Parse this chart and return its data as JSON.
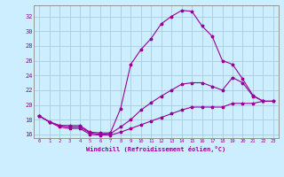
{
  "xlabel": "Windchill (Refroidissement éolien,°C)",
  "ylabel": "",
  "bg_color": "#cceeff",
  "grid_color": "#aaccdd",
  "line_color": "#990099",
  "xlim": [
    -0.5,
    23.5
  ],
  "ylim": [
    15.5,
    33.5
  ],
  "yticks": [
    16,
    18,
    20,
    22,
    24,
    26,
    28,
    30,
    32
  ],
  "xticks": [
    0,
    1,
    2,
    3,
    4,
    5,
    6,
    7,
    8,
    9,
    10,
    11,
    12,
    13,
    14,
    15,
    16,
    17,
    18,
    19,
    20,
    21,
    22,
    23
  ],
  "line1_x": [
    0,
    1,
    2,
    3,
    4,
    5,
    6,
    7,
    8,
    9,
    10,
    11,
    12,
    13,
    14,
    15,
    16,
    17,
    18,
    19,
    20,
    21,
    22
  ],
  "line1_y": [
    18.5,
    17.7,
    17.2,
    17.2,
    17.2,
    16.3,
    16.2,
    16.2,
    19.5,
    25.5,
    27.5,
    29.0,
    31.0,
    32.0,
    32.8,
    32.7,
    30.7,
    29.3,
    26.0,
    25.5,
    23.5,
    21.3,
    20.5
  ],
  "line2_x": [
    0,
    1,
    2,
    3,
    4,
    5,
    6,
    7,
    8,
    9,
    10,
    11,
    12,
    13,
    14,
    15,
    16,
    17,
    18,
    19,
    20,
    21,
    22,
    23
  ],
  "line2_y": [
    18.5,
    17.7,
    17.2,
    17.0,
    17.0,
    16.2,
    16.0,
    16.1,
    17.0,
    18.0,
    19.3,
    20.3,
    21.2,
    22.0,
    22.8,
    23.0,
    23.0,
    22.5,
    22.0,
    23.7,
    23.0,
    21.2,
    20.5,
    20.5
  ],
  "line3_x": [
    0,
    1,
    2,
    3,
    4,
    5,
    6,
    7,
    8,
    9,
    10,
    11,
    12,
    13,
    14,
    15,
    16,
    17,
    18,
    19,
    20,
    21,
    22,
    23
  ],
  "line3_y": [
    18.5,
    17.7,
    17.0,
    16.8,
    16.8,
    16.0,
    15.9,
    15.9,
    16.3,
    16.8,
    17.3,
    17.8,
    18.3,
    18.8,
    19.3,
    19.7,
    19.7,
    19.7,
    19.7,
    20.2,
    20.2,
    20.2,
    20.5,
    20.5
  ]
}
